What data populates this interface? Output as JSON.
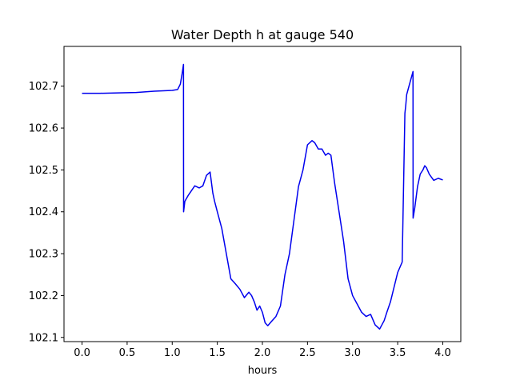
{
  "chart_data": {
    "type": "line",
    "title": "Water Depth h at gauge 540",
    "xlabel": "hours",
    "ylabel": "",
    "xlim": [
      -0.2,
      4.2
    ],
    "ylim": [
      102.09,
      102.795
    ],
    "xticks": [
      0.0,
      0.5,
      1.0,
      1.5,
      2.0,
      2.5,
      3.0,
      3.5,
      4.0
    ],
    "xtick_labels": [
      "0.0",
      "0.5",
      "1.0",
      "1.5",
      "2.0",
      "2.5",
      "3.0",
      "3.5",
      "4.0"
    ],
    "yticks": [
      102.1,
      102.2,
      102.3,
      102.4,
      102.5,
      102.6,
      102.7
    ],
    "ytick_labels": [
      "102.1",
      "102.2",
      "102.3",
      "102.4",
      "102.5",
      "102.6",
      "102.7"
    ],
    "grid": false,
    "series": [
      {
        "color": "#0000ee",
        "x": [
          0.0,
          0.2,
          0.4,
          0.6,
          0.8,
          1.0,
          1.06,
          1.09,
          1.11,
          1.125,
          1.126,
          1.14,
          1.18,
          1.25,
          1.3,
          1.34,
          1.38,
          1.42,
          1.45,
          1.47,
          1.5,
          1.55,
          1.6,
          1.65,
          1.7,
          1.75,
          1.8,
          1.85,
          1.88,
          1.91,
          1.94,
          1.97,
          2.0,
          2.03,
          2.06,
          2.1,
          2.15,
          2.2,
          2.25,
          2.3,
          2.35,
          2.4,
          2.45,
          2.5,
          2.55,
          2.58,
          2.62,
          2.66,
          2.7,
          2.73,
          2.76,
          2.8,
          2.85,
          2.9,
          2.95,
          3.0,
          3.05,
          3.1,
          3.15,
          3.2,
          3.25,
          3.3,
          3.35,
          3.38,
          3.42,
          3.46,
          3.5,
          3.55,
          3.58,
          3.59,
          3.6,
          3.67,
          3.671,
          3.69,
          3.72,
          3.75,
          3.78,
          3.8,
          3.82,
          3.85,
          3.9,
          3.95,
          4.0
        ],
        "y": [
          102.683,
          102.683,
          102.684,
          102.685,
          102.688,
          102.69,
          102.692,
          102.705,
          102.73,
          102.752,
          102.4,
          102.425,
          102.44,
          102.462,
          102.457,
          102.462,
          102.487,
          102.495,
          102.445,
          102.425,
          102.4,
          102.36,
          102.3,
          102.24,
          102.228,
          102.215,
          102.195,
          102.208,
          102.2,
          102.185,
          102.165,
          102.175,
          102.16,
          102.135,
          102.128,
          102.138,
          102.15,
          102.175,
          102.25,
          102.3,
          102.38,
          102.46,
          102.5,
          102.56,
          102.57,
          102.565,
          102.55,
          102.55,
          102.535,
          102.54,
          102.535,
          102.47,
          102.4,
          102.33,
          102.24,
          102.2,
          102.18,
          102.16,
          102.15,
          102.155,
          102.13,
          102.12,
          102.14,
          102.16,
          102.185,
          102.22,
          102.255,
          102.28,
          102.635,
          102.655,
          102.68,
          102.735,
          102.385,
          102.41,
          102.46,
          102.49,
          102.5,
          102.51,
          102.505,
          102.49,
          102.475,
          102.48,
          102.476
        ]
      }
    ]
  }
}
